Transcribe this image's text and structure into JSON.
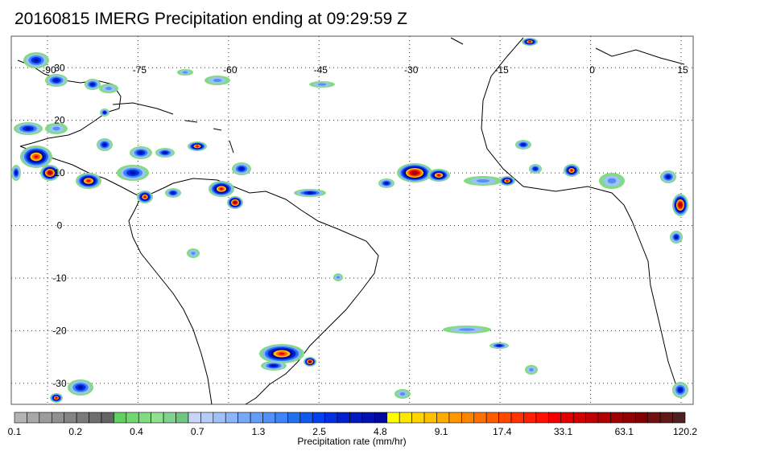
{
  "title": "20160815 IMERG Precipitation ending at 09:29:59 Z",
  "map": {
    "lon_range": [
      -96,
      17
    ],
    "lat_range": [
      36,
      -34
    ],
    "lon_labels": [
      "-90",
      "-75",
      "-60",
      "-45",
      "-30",
      "-15",
      "0",
      "15"
    ],
    "lat_labels": [
      "30",
      "20",
      "10",
      "0",
      "-10",
      "-20",
      "-30"
    ]
  },
  "colorbar": {
    "ticks": [
      "0.1",
      "0.2",
      "0.4",
      "0.7",
      "1.3",
      "2.5",
      "4.8",
      "9.1",
      "17.4",
      "33.1",
      "63.1",
      "120.2"
    ],
    "label": "Precipitation rate (mm/hr)",
    "colors": [
      "#b4b4b4",
      "#a8a8a8",
      "#9c9c9c",
      "#909090",
      "#848484",
      "#7a7a7a",
      "#6e6e6e",
      "#646464",
      "#60d060",
      "#70d870",
      "#80dc80",
      "#90e090",
      "#7fd38f",
      "#6fc67f",
      "#c8d4f8",
      "#b4ccf8",
      "#a0c0f8",
      "#8cb4f8",
      "#78a8f8",
      "#649cf8",
      "#5090f8",
      "#3c84f8",
      "#2070f0",
      "#1058f0",
      "#0040f0",
      "#0030e0",
      "#0020d0",
      "#0018c0",
      "#0010b0",
      "#0008a0",
      "#ffff00",
      "#ffe800",
      "#ffd400",
      "#ffc000",
      "#ffac00",
      "#ff9800",
      "#ff8400",
      "#ff7000",
      "#ff5c00",
      "#ff4800",
      "#ff3400",
      "#ff2000",
      "#ff1000",
      "#f00000",
      "#e00000",
      "#d00000",
      "#c00000",
      "#b00000",
      "#a00000",
      "#900000",
      "#800000",
      "#701010",
      "#601818",
      "#502020"
    ]
  }
}
